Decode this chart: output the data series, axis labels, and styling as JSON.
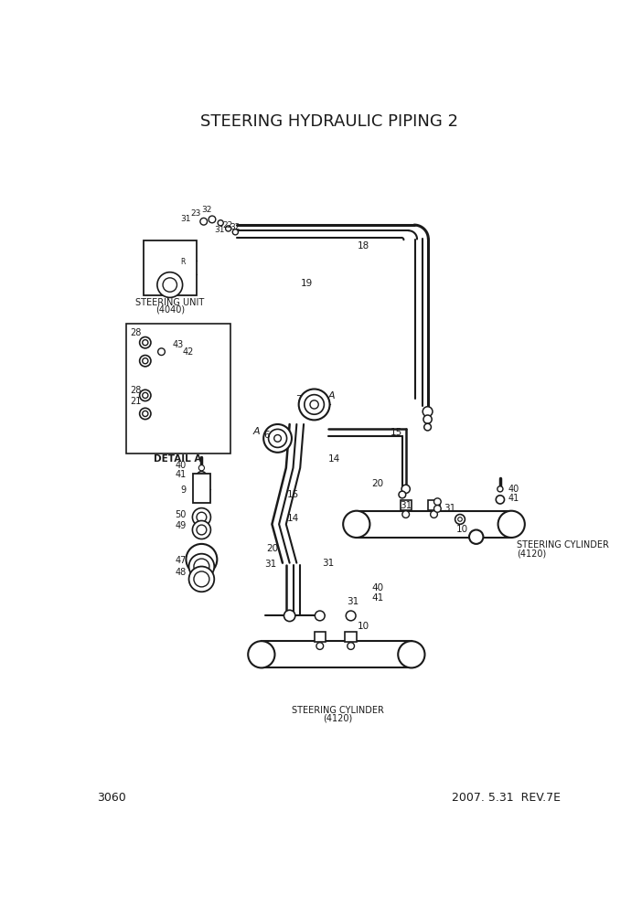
{
  "title": "STEERING HYDRAULIC PIPING 2",
  "page_number": "3060",
  "revision": "2007. 5.31  REV.7E",
  "bg_color": "#ffffff",
  "lc": "#1a1a1a",
  "fig_w": 7.02,
  "fig_h": 9.92,
  "dpi": 100
}
